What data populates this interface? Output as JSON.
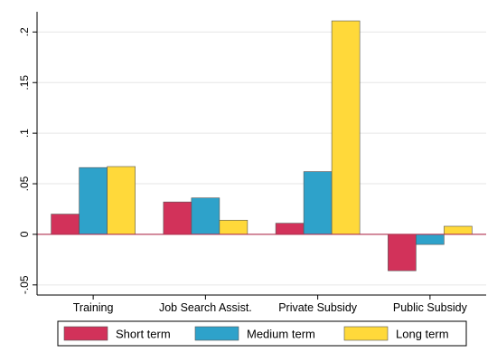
{
  "chart_data": {
    "type": "bar",
    "categories": [
      "Training",
      "Job Search Assist.",
      "Private Subsidy",
      "Public Subsidy"
    ],
    "series": [
      {
        "name": "Short term",
        "values": [
          0.02,
          0.032,
          0.011,
          -0.036
        ],
        "color": "#D2325A"
      },
      {
        "name": "Medium term",
        "values": [
          0.066,
          0.036,
          0.062,
          -0.01
        ],
        "color": "#2EA2CA"
      },
      {
        "name": "Long term",
        "values": [
          0.067,
          0.014,
          0.211,
          0.008
        ],
        "color": "#FFD93A"
      }
    ],
    "ylim": [
      -0.06,
      0.22
    ],
    "yticks": [
      -0.05,
      0,
      0.05,
      0.1,
      0.15,
      0.2
    ],
    "ytick_labels": [
      "-.05",
      "0",
      ".05",
      ".1",
      ".15",
      ".2"
    ],
    "grid": true,
    "legend_position": "bottom",
    "zero_line_color": "#B0304F"
  }
}
